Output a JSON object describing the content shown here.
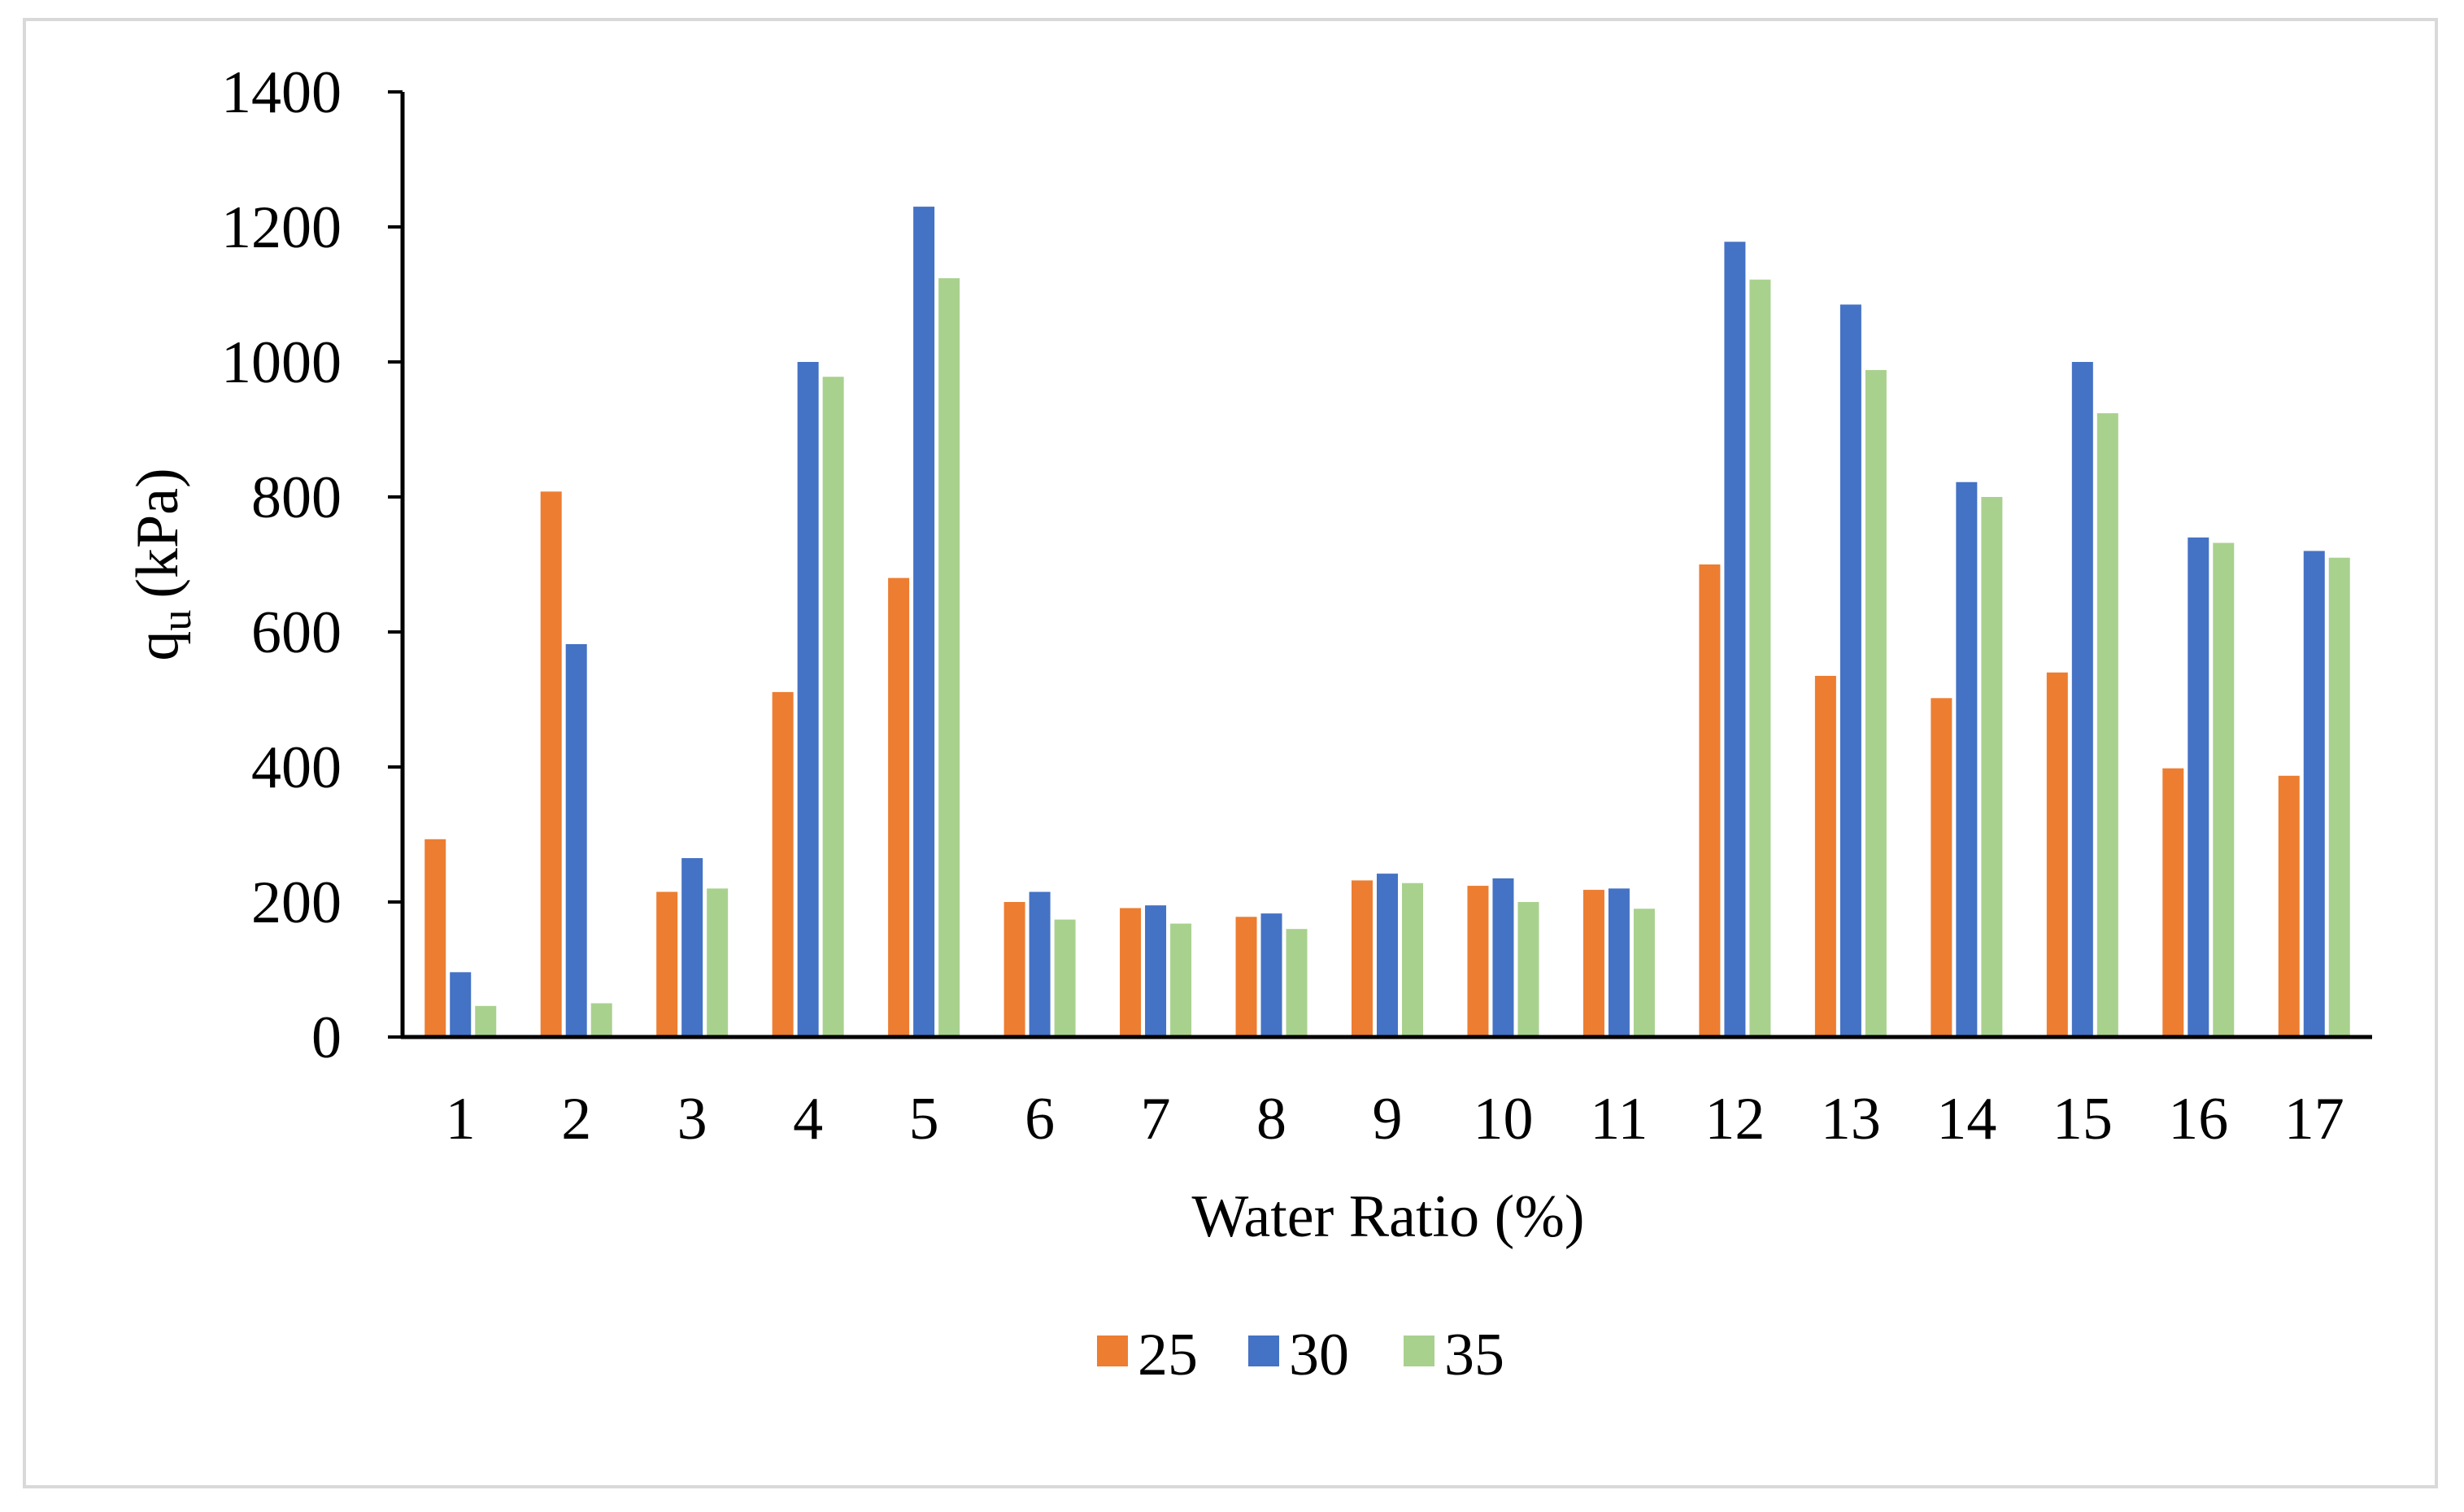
{
  "chart_data": {
    "type": "bar",
    "title": "",
    "xlabel": "Water Ratio (%)",
    "ylabel_main": "q",
    "ylabel_sub": "u",
    "ylabel_unit": "(kPa)",
    "categories": [
      "1",
      "2",
      "3",
      "4",
      "5",
      "6",
      "7",
      "8",
      "9",
      "10",
      "11",
      "12",
      "13",
      "14",
      "15",
      "16",
      "17"
    ],
    "series": [
      {
        "name": "25",
        "color": "#ED7D31",
        "values": [
          293,
          808,
          215,
          511,
          680,
          200,
          191,
          178,
          232,
          224,
          218,
          700,
          535,
          502,
          540,
          398,
          387
        ]
      },
      {
        "name": "30",
        "color": "#4472C4",
        "values": [
          96,
          582,
          265,
          1000,
          1230,
          215,
          195,
          183,
          242,
          235,
          220,
          1178,
          1085,
          822,
          1000,
          740,
          720
        ]
      },
      {
        "name": "35",
        "color": "#A9D18E",
        "values": [
          46,
          50,
          220,
          978,
          1124,
          174,
          168,
          160,
          228,
          200,
          190,
          1122,
          988,
          800,
          924,
          732,
          710
        ]
      }
    ],
    "ylim": [
      0,
      1400
    ],
    "yticks": [
      "0",
      "200",
      "400",
      "600",
      "800",
      "1000",
      "1200",
      "1400"
    ],
    "ytick_values": [
      0,
      200,
      400,
      600,
      800,
      1000,
      1200,
      1400
    ],
    "grid": false,
    "legend_position": "bottom"
  }
}
